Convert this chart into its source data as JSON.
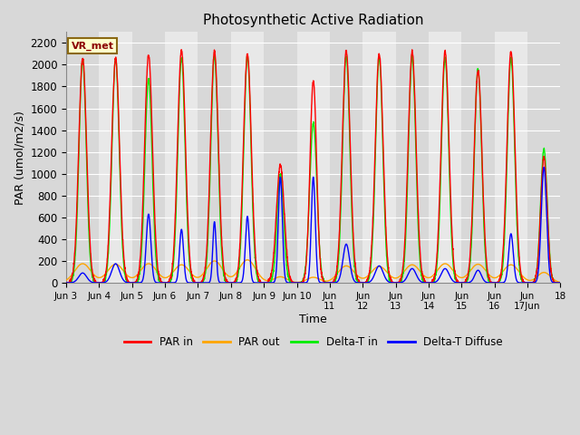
{
  "title": "Photosynthetic Active Radiation",
  "ylabel": "PAR (umol/m2/s)",
  "xlabel": "Time",
  "ylim": [
    0,
    2300
  ],
  "yticks": [
    0,
    200,
    400,
    600,
    800,
    1000,
    1200,
    1400,
    1600,
    1800,
    2000,
    2200
  ],
  "xtick_labels": [
    "Jun 3",
    "Jun 4",
    "Jun 5",
    "Jun 6",
    "Jun 7",
    "Jun 8",
    "Jun 9",
    "Jun 10",
    "Jun 11",
    "Jun 12",
    "Jun 13",
    "Jun 14",
    "Jun 15",
    "Jun 16",
    "Jun 17Jun",
    "18"
  ],
  "background_color": "#e0e0e0",
  "plot_bg_alternating": [
    "#d8d8d8",
    "#e8e8e8"
  ],
  "grid_color": "#ffffff",
  "legend_label": "VR_met",
  "colors": {
    "par_in": "#ff0000",
    "par_out": "#ffa500",
    "delta_t_in": "#00ee00",
    "delta_t_diffuse": "#0000ff"
  },
  "linewidth": 1.0,
  "n_days": 15,
  "day_centers": [
    0.5,
    1.5,
    2.5,
    3.5,
    4.5,
    5.5,
    6.5,
    7.5,
    8.5,
    9.5,
    10.5,
    11.5,
    12.5,
    13.5,
    14.5
  ],
  "par_in_peaks": [
    2060,
    2060,
    2090,
    2130,
    2120,
    2100,
    1080,
    1850,
    2130,
    2100,
    2120,
    2120,
    1940,
    2120,
    1150
  ],
  "par_in_width": [
    0.12,
    0.12,
    0.12,
    0.12,
    0.12,
    0.12,
    0.12,
    0.1,
    0.12,
    0.12,
    0.12,
    0.12,
    0.12,
    0.12,
    0.1
  ],
  "par_out_peaks": [
    175,
    170,
    175,
    165,
    200,
    210,
    55,
    50,
    155,
    150,
    165,
    175,
    170,
    165,
    95
  ],
  "par_out_width": [
    0.25,
    0.25,
    0.25,
    0.25,
    0.25,
    0.25,
    0.2,
    0.2,
    0.25,
    0.25,
    0.25,
    0.25,
    0.25,
    0.25,
    0.2
  ],
  "delta_t_in_peaks": [
    2050,
    2050,
    1870,
    2060,
    2080,
    2080,
    1000,
    1460,
    2080,
    2060,
    2070,
    2060,
    1960,
    2060,
    1220
  ],
  "delta_t_in_width": [
    0.11,
    0.11,
    0.11,
    0.11,
    0.11,
    0.11,
    0.1,
    0.11,
    0.11,
    0.11,
    0.11,
    0.11,
    0.11,
    0.11,
    0.1
  ],
  "delta_t_diff_day_peaks": [
    90,
    175,
    630,
    490,
    560,
    610,
    970,
    970,
    355,
    155,
    130,
    130,
    115,
    450,
    1060
  ],
  "delta_t_diff_width": [
    0.12,
    0.12,
    0.07,
    0.06,
    0.05,
    0.06,
    0.06,
    0.06,
    0.1,
    0.12,
    0.12,
    0.12,
    0.1,
    0.07,
    0.08
  ],
  "n_points": 3000
}
